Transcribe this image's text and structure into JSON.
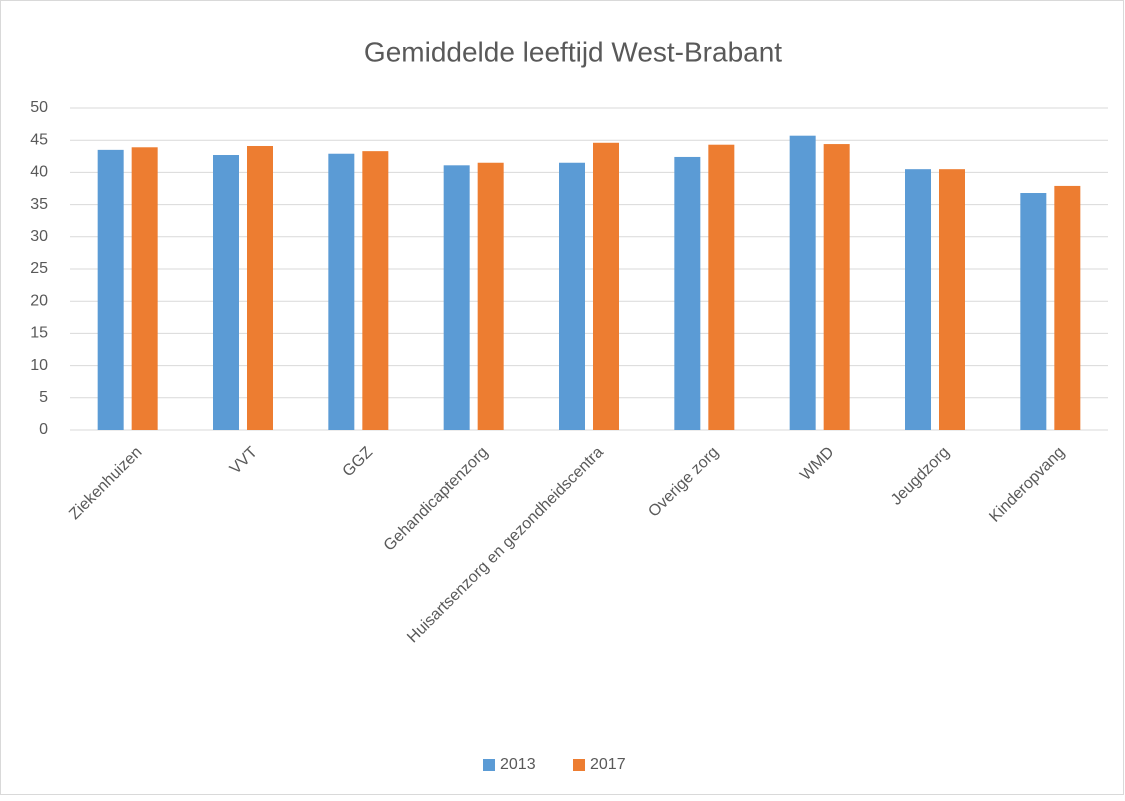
{
  "chart_data": {
    "type": "bar",
    "title": "Gemiddelde leeftijd West-Brabant",
    "categories": [
      "Ziekenhuizen",
      "VVT",
      "GGZ",
      "Gehandicaptenzorg",
      "Huisartsenzorg en gezondheidscentra",
      "Overige zorg",
      "WMD",
      "Jeugdzorg",
      "Kinderopvang"
    ],
    "series": [
      {
        "name": "2013",
        "color": "#5b9bd5",
        "values": [
          43.5,
          42.7,
          42.9,
          41.1,
          41.5,
          42.4,
          45.7,
          40.5,
          36.8
        ]
      },
      {
        "name": "2017",
        "color": "#ed7d31",
        "values": [
          43.9,
          44.1,
          43.3,
          41.5,
          44.6,
          44.3,
          44.4,
          40.5,
          37.9
        ]
      }
    ],
    "ylim": [
      0,
      50
    ],
    "yticks": [
      0,
      5,
      10,
      15,
      20,
      25,
      30,
      35,
      40,
      45,
      50
    ],
    "grid": true,
    "legend": "bottom"
  }
}
